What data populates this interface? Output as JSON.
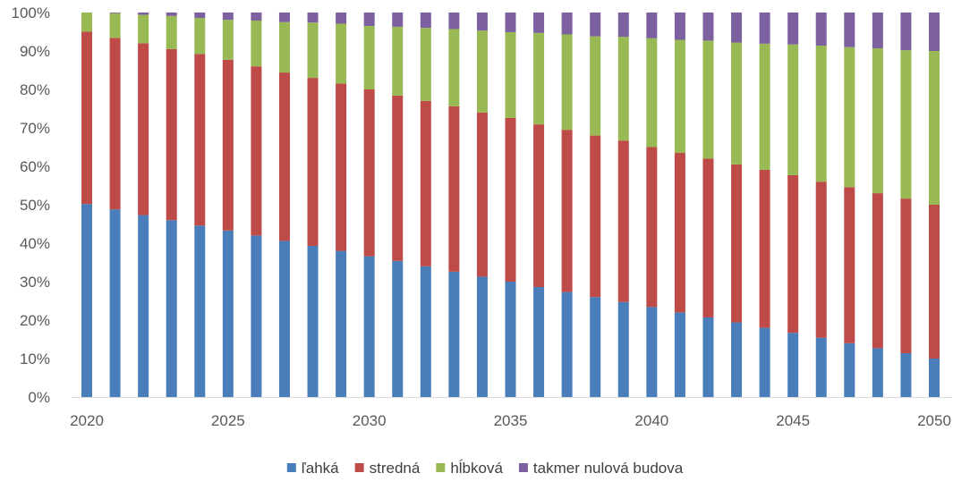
{
  "chart_data": {
    "type": "bar",
    "stacked": true,
    "percent": true,
    "title": "",
    "xlabel": "",
    "ylabel": "",
    "ylim": [
      0,
      100
    ],
    "y_tick_labels": [
      "0%",
      "10%",
      "20%",
      "30%",
      "40%",
      "50%",
      "60%",
      "70%",
      "80%",
      "90%",
      "100%"
    ],
    "x_tick_labels": [
      "2020",
      "2025",
      "2030",
      "2035",
      "2040",
      "2045",
      "2050"
    ],
    "x": [
      2020,
      2021,
      2022,
      2023,
      2024,
      2025,
      2026,
      2027,
      2028,
      2029,
      2030,
      2031,
      2032,
      2033,
      2034,
      2035,
      2036,
      2037,
      2038,
      2039,
      2040,
      2041,
      2042,
      2043,
      2044,
      2045,
      2046,
      2047,
      2048,
      2049,
      2050
    ],
    "legend_position": "bottom",
    "grid": false,
    "series": [
      {
        "name": "ľahká",
        "color": "#4a7ebb",
        "values": [
          50.2,
          48.8,
          47.3,
          46.0,
          44.6,
          43.3,
          42.0,
          40.6,
          39.3,
          38.0,
          36.6,
          35.4,
          34.0,
          32.6,
          31.3,
          30.0,
          28.6,
          27.3,
          26.0,
          24.7,
          23.4,
          22.0,
          20.7,
          19.4,
          18.0,
          16.7,
          15.4,
          14.0,
          12.7,
          11.4,
          10.0
        ]
      },
      {
        "name": "stredná",
        "color": "#be4b48",
        "values": [
          44.8,
          44.6,
          44.7,
          44.5,
          44.6,
          44.4,
          44.0,
          43.8,
          43.7,
          43.5,
          43.4,
          43.0,
          43.0,
          43.0,
          42.7,
          42.6,
          42.3,
          42.2,
          42.0,
          42.0,
          41.6,
          41.5,
          41.3,
          41.1,
          41.1,
          41.0,
          40.6,
          40.6,
          40.3,
          40.2,
          40.0
        ]
      },
      {
        "name": "hĺbková",
        "color": "#98b954",
        "values": [
          5.0,
          6.4,
          7.4,
          8.6,
          9.4,
          10.4,
          11.9,
          13.1,
          14.4,
          15.6,
          16.5,
          17.9,
          19.0,
          20.1,
          21.3,
          22.3,
          23.8,
          24.8,
          25.8,
          27.0,
          28.3,
          29.4,
          30.7,
          31.7,
          32.8,
          34.0,
          35.4,
          36.4,
          37.7,
          38.6,
          40.0
        ]
      },
      {
        "name": "takmer nulová budova",
        "color": "#7d60a0",
        "values": [
          0.0,
          0.2,
          0.6,
          0.9,
          1.4,
          1.9,
          2.1,
          2.5,
          2.6,
          2.9,
          3.5,
          3.7,
          4.0,
          4.3,
          4.7,
          5.1,
          5.3,
          5.7,
          6.2,
          6.3,
          6.7,
          7.1,
          7.3,
          7.8,
          8.1,
          8.3,
          8.6,
          9.0,
          9.3,
          9.8,
          10.0
        ]
      }
    ]
  }
}
